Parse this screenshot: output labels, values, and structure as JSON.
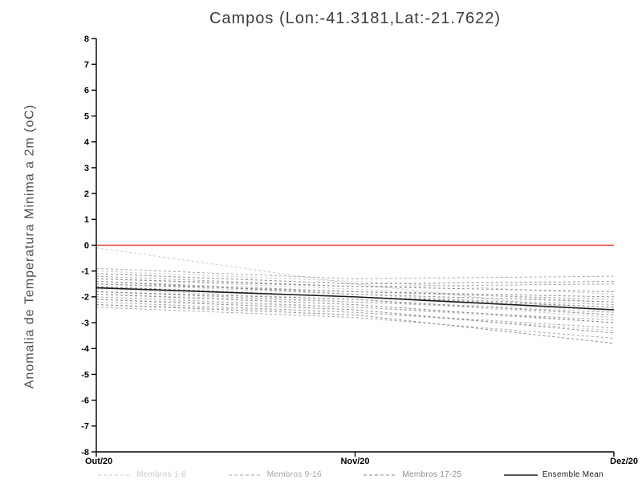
{
  "chart_data": {
    "type": "line",
    "title": "Campos (Lon:-41.3181,Lat:-21.7622)",
    "ylabel": "Anomalia de Temperatura Minima a 2m (oC)",
    "x": [
      "Out/20",
      "Nov/20",
      "Dez/20"
    ],
    "ylim": [
      -8,
      8
    ],
    "y_ticks": [
      -8,
      -7,
      -6,
      -5,
      -4,
      -3,
      -2,
      -1,
      0,
      1,
      2,
      3,
      4,
      5,
      6,
      7,
      8
    ],
    "grid": false,
    "legend_position": "bottom",
    "zero_line": {
      "y": 0,
      "color": "#e23b2e"
    },
    "axis_color": "#000000",
    "member_groups": [
      {
        "name": "Membros 1-8",
        "color": "#c9c9c9",
        "members": [
          [
            -0.1,
            -1.5,
            -2.6
          ],
          [
            -1.0,
            -1.4,
            -1.9
          ],
          [
            -1.3,
            -1.7,
            -2.2
          ],
          [
            -1.5,
            -1.9,
            -2.4
          ],
          [
            -1.7,
            -2.1,
            -2.8
          ],
          [
            -1.9,
            -2.2,
            -2.5
          ],
          [
            -2.1,
            -2.4,
            -3.0
          ],
          [
            -2.3,
            -2.6,
            -3.3
          ]
        ]
      },
      {
        "name": "Membros 9-16",
        "color": "#a6a6a6",
        "members": [
          [
            -0.9,
            -1.3,
            -1.2
          ],
          [
            -1.2,
            -1.6,
            -1.5
          ],
          [
            -1.4,
            -1.8,
            -2.1
          ],
          [
            -1.6,
            -2.0,
            -2.3
          ],
          [
            -1.8,
            -2.2,
            -2.6
          ],
          [
            -2.0,
            -2.4,
            -2.9
          ],
          [
            -2.2,
            -2.6,
            -3.2
          ],
          [
            -2.4,
            -2.8,
            -3.6
          ]
        ]
      },
      {
        "name": "Membros 17-25",
        "color": "#8a8a8a",
        "members": [
          [
            -1.1,
            -1.5,
            -1.4
          ],
          [
            -1.3,
            -1.6,
            -1.8
          ],
          [
            -1.5,
            -1.8,
            -2.0
          ],
          [
            -1.6,
            -2.0,
            -2.4
          ],
          [
            -1.8,
            -2.1,
            -2.7
          ],
          [
            -1.9,
            -2.3,
            -3.0
          ],
          [
            -2.1,
            -2.5,
            -3.4
          ],
          [
            -2.3,
            -2.7,
            -3.8
          ],
          [
            -1.4,
            -1.9,
            -2.2
          ]
        ]
      }
    ],
    "ensemble_mean": {
      "name": "Ensemble Mean",
      "color": "#1a1a1a",
      "values": [
        -1.65,
        -2.0,
        -2.5
      ]
    }
  }
}
